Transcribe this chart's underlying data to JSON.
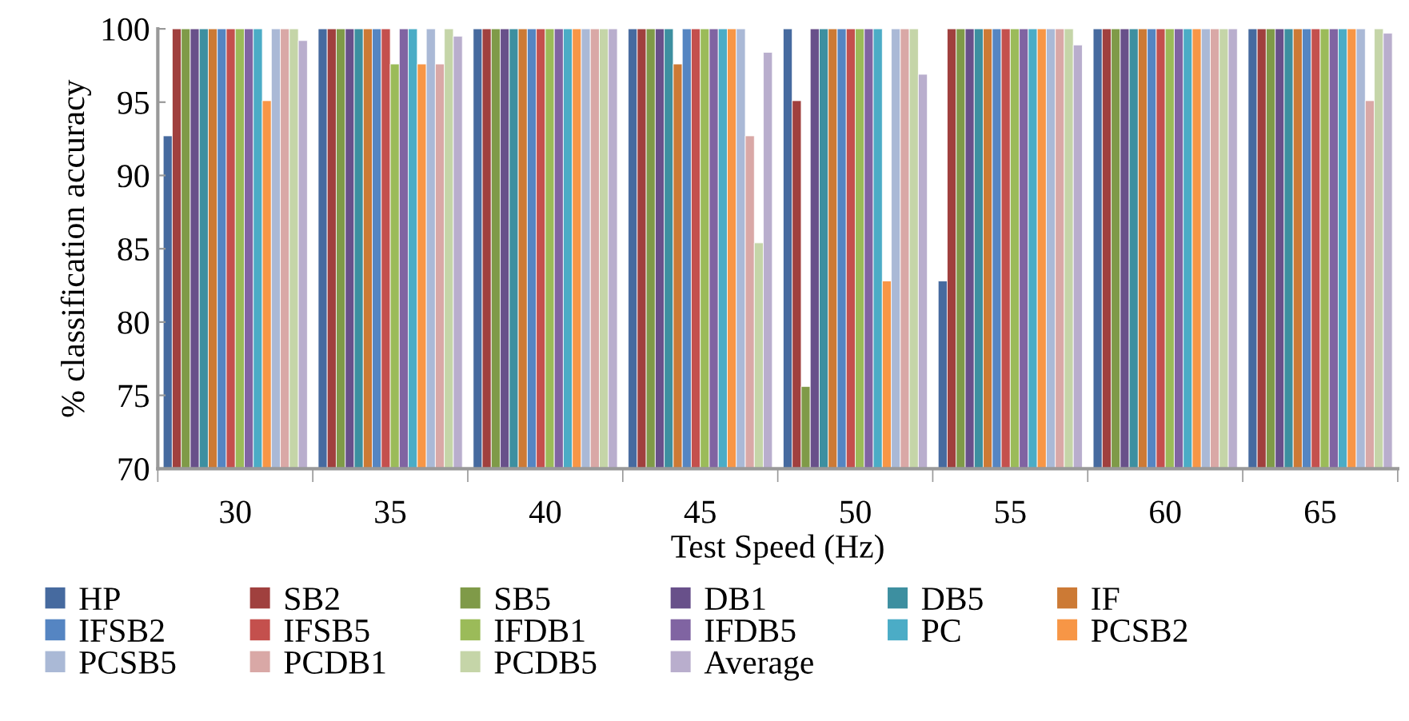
{
  "chart_data": {
    "type": "bar",
    "xlabel": "Test Speed (Hz)",
    "ylabel": "% classification accuracy",
    "categories": [
      "30",
      "35",
      "40",
      "45",
      "50",
      "55",
      "60",
      "65"
    ],
    "ylim": [
      70,
      100
    ],
    "yticks": [
      70,
      75,
      80,
      85,
      90,
      95,
      100
    ],
    "grid": false,
    "legend": "bottom",
    "series": [
      {
        "name": "HP",
        "color": "#466a9f",
        "values": [
          92.7,
          100,
          100,
          100,
          100,
          82.8,
          100,
          100
        ]
      },
      {
        "name": "SB2",
        "color": "#a0403e",
        "values": [
          100,
          100,
          100,
          100,
          95.1,
          100,
          100,
          100
        ]
      },
      {
        "name": "SB5",
        "color": "#7f9a48",
        "values": [
          100,
          100,
          100,
          100,
          75.6,
          100,
          100,
          100
        ]
      },
      {
        "name": "DB1",
        "color": "#68508a",
        "values": [
          100,
          100,
          100,
          100,
          100,
          100,
          100,
          100
        ]
      },
      {
        "name": "DB5",
        "color": "#3d8fa0",
        "values": [
          100,
          100,
          100,
          100,
          100,
          100,
          100,
          100
        ]
      },
      {
        "name": "IF",
        "color": "#cc7a35",
        "values": [
          100,
          100,
          100,
          97.6,
          100,
          100,
          100,
          100
        ]
      },
      {
        "name": "IFSB2",
        "color": "#5585c2",
        "values": [
          100,
          100,
          100,
          100,
          100,
          100,
          100,
          100
        ]
      },
      {
        "name": "IFSB5",
        "color": "#c4504d",
        "values": [
          100,
          100,
          100,
          100,
          100,
          100,
          100,
          100
        ]
      },
      {
        "name": "IFDB1",
        "color": "#9bbb59",
        "values": [
          100,
          97.6,
          100,
          100,
          100,
          100,
          100,
          100
        ]
      },
      {
        "name": "IFDB5",
        "color": "#8064a2",
        "values": [
          100,
          100,
          100,
          100,
          100,
          100,
          100,
          100
        ]
      },
      {
        "name": "PC",
        "color": "#4bacc6",
        "values": [
          100,
          100,
          100,
          100,
          100,
          100,
          100,
          100
        ]
      },
      {
        "name": "PCSB2",
        "color": "#f79646",
        "values": [
          95.1,
          97.6,
          100,
          100,
          82.8,
          100,
          100,
          100
        ]
      },
      {
        "name": "PCSB5",
        "color": "#aab9d6",
        "values": [
          100,
          100,
          100,
          100,
          100,
          100,
          100,
          100
        ]
      },
      {
        "name": "PCDB1",
        "color": "#d9a8a6",
        "values": [
          100,
          97.6,
          100,
          92.7,
          100,
          100,
          100,
          95.1
        ]
      },
      {
        "name": "PCDB5",
        "color": "#c5d5a8",
        "values": [
          100,
          100,
          100,
          85.4,
          100,
          100,
          100,
          100
        ]
      },
      {
        "name": "Average",
        "color": "#b9aecd",
        "values": [
          99.2,
          99.5,
          100,
          98.4,
          96.9,
          98.9,
          100,
          99.7
        ]
      }
    ]
  }
}
